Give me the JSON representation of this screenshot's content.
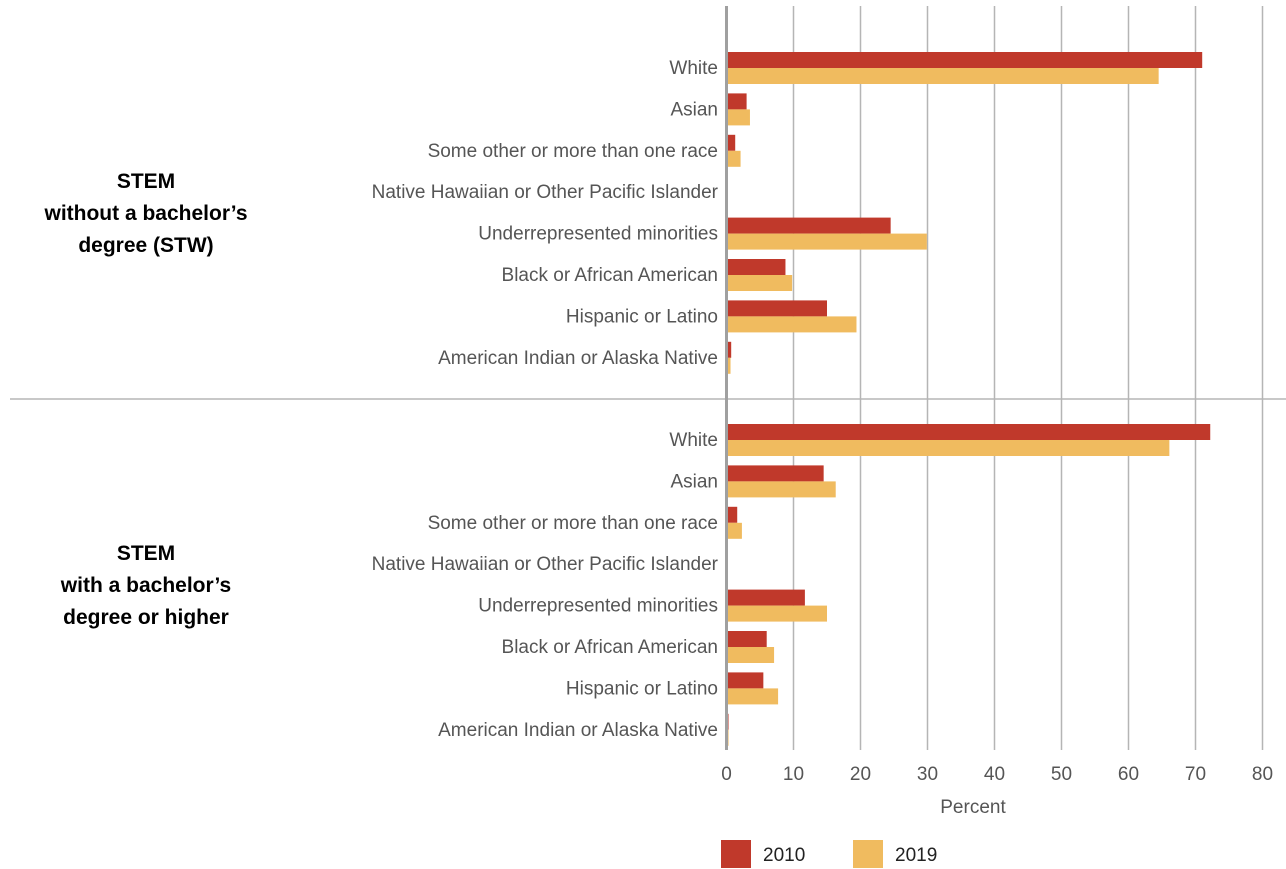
{
  "chart_data": {
    "type": "bar",
    "orientation": "horizontal",
    "xlabel": "Percent",
    "xlim": [
      0,
      80
    ],
    "xticks": [
      0,
      10,
      20,
      30,
      40,
      50,
      60,
      70,
      80
    ],
    "grid": true,
    "legend_position": "bottom",
    "colors": {
      "2010": "#c0392b",
      "2019": "#f0bb5f"
    },
    "groups": [
      {
        "label_lines": [
          "STEM",
          "without a bachelor’s",
          "degree (STW)"
        ],
        "categories": [
          "White",
          "Asian",
          "Some other or more than one race",
          "Native Hawaiian or Other Pacific Islander",
          "Underrepresented minorities",
          "Black or African American",
          "Hispanic or Latino",
          "American Indian or Alaska Native"
        ],
        "series": [
          {
            "name": "2010",
            "values": [
              71.0,
              3.0,
              1.3,
              0.2,
              24.5,
              8.8,
              15.0,
              0.7
            ]
          },
          {
            "name": "2019",
            "values": [
              64.5,
              3.5,
              2.1,
              0.2,
              29.9,
              9.8,
              19.4,
              0.6
            ]
          }
        ]
      },
      {
        "label_lines": [
          "STEM",
          "with a bachelor’s",
          "degree or higher"
        ],
        "categories": [
          "White",
          "Asian",
          "Some other or more than one race",
          "Native Hawaiian or Other Pacific Islander",
          "Underrepresented minorities",
          "Black or African American",
          "Hispanic or Latino",
          "American Indian or Alaska Native"
        ],
        "series": [
          {
            "name": "2010",
            "values": [
              72.2,
              14.5,
              1.6,
              0.2,
              11.7,
              6.0,
              5.5,
              0.3
            ]
          },
          {
            "name": "2019",
            "values": [
              66.1,
              16.3,
              2.3,
              0.2,
              15.0,
              7.1,
              7.7,
              0.3
            ]
          }
        ]
      }
    ],
    "legend": [
      "2010",
      "2019"
    ]
  }
}
